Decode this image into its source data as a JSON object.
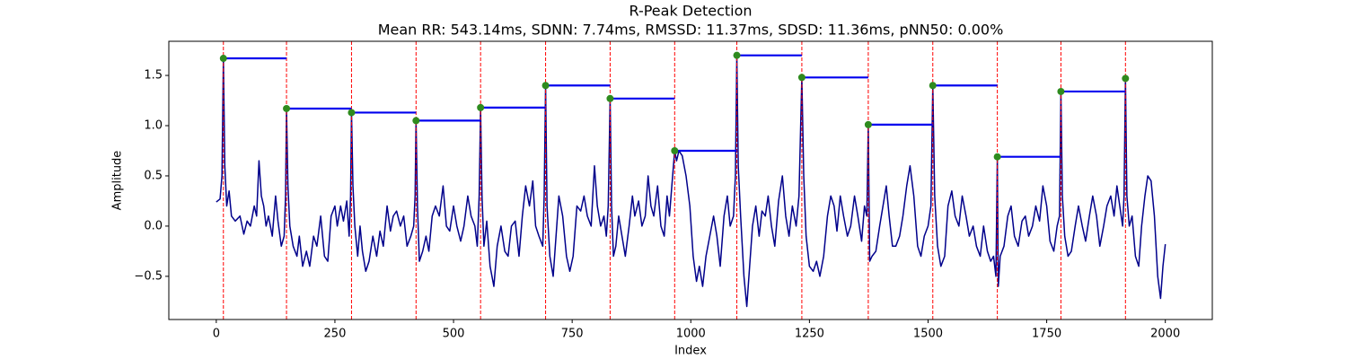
{
  "chart_data": {
    "type": "line",
    "title": "R-Peak Detection",
    "subtitle": "Mean RR: 543.14ms, SDNN: 7.74ms, RMSSD: 11.37ms, SDSD: 11.36ms, pNN50: 0.00%",
    "x_label": "Index",
    "y_label": "Amplitude",
    "xlim": [
      -100,
      2099
    ],
    "ylim": [
      -0.93,
      1.84
    ],
    "xticks": [
      0,
      250,
      500,
      750,
      1000,
      1250,
      1500,
      1750,
      2000
    ],
    "yticks": [
      {
        "value": -0.5,
        "label": "−0.5"
      },
      {
        "value": 0,
        "label": "0.0"
      },
      {
        "value": 0.5,
        "label": "0.5"
      },
      {
        "value": 1,
        "label": "1.0"
      },
      {
        "value": 1.5,
        "label": "1.5"
      }
    ],
    "series": [
      {
        "color": "#00008b",
        "x": [
          0,
          8,
          12,
          15,
          18,
          22,
          27,
          32,
          40,
          50,
          58,
          65,
          72,
          80,
          85,
          90,
          95,
          100,
          105,
          110,
          118,
          125,
          130,
          137,
          143,
          146,
          148,
          151,
          155,
          162,
          170,
          175,
          182,
          190,
          197,
          205,
          212,
          220,
          228,
          235,
          242,
          250,
          255,
          262,
          268,
          275,
          280,
          283,
          285,
          288,
          292,
          298,
          303,
          308,
          315,
          322,
          330,
          338,
          345,
          352,
          360,
          367,
          373,
          380,
          388,
          395,
          402,
          410,
          416,
          419,
          421,
          424,
          428,
          435,
          442,
          448,
          455,
          462,
          470,
          478,
          485,
          492,
          500,
          507,
          515,
          522,
          530,
          537,
          545,
          550,
          554,
          557,
          560,
          564,
          570,
          577,
          585,
          592,
          600,
          608,
          615,
          622,
          630,
          638,
          645,
          652,
          660,
          667,
          673,
          680,
          688,
          691,
          694,
          697,
          703,
          710,
          716,
          722,
          730,
          738,
          745,
          752,
          760,
          768,
          775,
          782,
          790,
          797,
          803,
          810,
          817,
          822,
          826,
          830,
          833,
          837,
          842,
          848,
          855,
          862,
          870,
          877,
          882,
          890,
          897,
          904,
          910,
          916,
          922,
          930,
          937,
          944,
          950,
          955,
          960,
          966,
          970,
          975,
          982,
          990,
          998,
          1005,
          1012,
          1018,
          1025,
          1032,
          1040,
          1048,
          1055,
          1062,
          1070,
          1077,
          1083,
          1090,
          1094,
          1097,
          1100,
          1105,
          1112,
          1118,
          1124,
          1130,
          1137,
          1144,
          1150,
          1157,
          1163,
          1170,
          1177,
          1185,
          1193,
          1200,
          1207,
          1214,
          1222,
          1228,
          1234,
          1238,
          1243,
          1250,
          1258,
          1265,
          1272,
          1280,
          1288,
          1295,
          1302,
          1308,
          1315,
          1322,
          1330,
          1337,
          1345,
          1352,
          1360,
          1366,
          1371,
          1374,
          1377,
          1382,
          1390,
          1398,
          1405,
          1412,
          1418,
          1425,
          1432,
          1440,
          1447,
          1455,
          1462,
          1470,
          1478,
          1485,
          1492,
          1500,
          1506,
          1510,
          1514,
          1520,
          1527,
          1535,
          1542,
          1550,
          1557,
          1565,
          1572,
          1580,
          1587,
          1595,
          1602,
          1610,
          1617,
          1625,
          1632,
          1638,
          1643,
          1646,
          1648,
          1652,
          1660,
          1668,
          1675,
          1682,
          1690,
          1698,
          1705,
          1712,
          1720,
          1727,
          1735,
          1742,
          1750,
          1757,
          1765,
          1772,
          1777,
          1780,
          1783,
          1788,
          1795,
          1802,
          1810,
          1817,
          1825,
          1832,
          1840,
          1847,
          1855,
          1862,
          1870,
          1877,
          1885,
          1892,
          1898,
          1904,
          1910,
          1913,
          1916,
          1919,
          1924,
          1930,
          1937,
          1944,
          1950,
          1957,
          1963,
          1970,
          1977,
          1984,
          1990,
          1995,
          2000
        ],
        "values": [
          0.24,
          0.27,
          0.5,
          1.67,
          0.6,
          0.2,
          0.35,
          0.1,
          0.05,
          0.1,
          -0.08,
          0.05,
          0.0,
          0.2,
          0.1,
          0.65,
          0.3,
          0.2,
          0.0,
          0.1,
          -0.1,
          0.3,
          0.05,
          -0.2,
          -0.1,
          0.3,
          1.17,
          0.4,
          0.0,
          -0.2,
          -0.3,
          -0.1,
          -0.4,
          -0.25,
          -0.4,
          -0.1,
          -0.2,
          0.1,
          -0.3,
          -0.35,
          0.1,
          0.2,
          0.0,
          0.2,
          0.05,
          0.25,
          -0.1,
          0.3,
          1.13,
          0.4,
          0.0,
          -0.3,
          0.0,
          -0.25,
          -0.45,
          -0.35,
          -0.1,
          -0.3,
          -0.05,
          -0.2,
          0.2,
          -0.05,
          0.1,
          0.15,
          0.0,
          0.1,
          -0.2,
          -0.1,
          0.0,
          0.3,
          1.05,
          0.2,
          -0.35,
          -0.25,
          -0.1,
          -0.25,
          0.1,
          0.2,
          0.1,
          0.4,
          0.0,
          -0.05,
          0.2,
          0.0,
          -0.15,
          0.0,
          0.3,
          0.1,
          0.0,
          -0.2,
          0.3,
          1.18,
          0.3,
          -0.2,
          0.05,
          -0.4,
          -0.6,
          -0.2,
          0.0,
          -0.25,
          -0.3,
          0.0,
          0.05,
          -0.3,
          0.1,
          0.4,
          0.2,
          0.45,
          0.0,
          -0.1,
          -0.2,
          0.3,
          1.4,
          0.2,
          -0.3,
          -0.5,
          -0.1,
          0.3,
          0.1,
          -0.3,
          -0.45,
          -0.3,
          0.2,
          0.15,
          0.3,
          0.1,
          0.0,
          0.6,
          0.2,
          0.0,
          0.1,
          -0.1,
          0.2,
          1.27,
          0.2,
          -0.3,
          -0.2,
          0.1,
          -0.1,
          -0.3,
          0.0,
          0.3,
          0.1,
          0.25,
          0.0,
          0.1,
          0.5,
          0.2,
          0.1,
          0.4,
          0.0,
          -0.1,
          0.3,
          0.1,
          0.4,
          0.75,
          0.65,
          0.75,
          0.7,
          0.5,
          0.2,
          -0.3,
          -0.55,
          -0.4,
          -0.6,
          -0.3,
          -0.1,
          0.1,
          -0.1,
          -0.4,
          0.1,
          0.3,
          0.0,
          0.1,
          0.5,
          1.7,
          0.6,
          0.1,
          -0.5,
          -0.8,
          -0.4,
          0.0,
          0.2,
          -0.1,
          0.15,
          0.1,
          0.3,
          0.0,
          -0.2,
          0.25,
          0.5,
          0.1,
          -0.1,
          0.2,
          0.0,
          0.3,
          1.48,
          0.5,
          -0.1,
          -0.4,
          -0.45,
          -0.35,
          -0.5,
          -0.3,
          0.1,
          0.3,
          0.2,
          -0.05,
          0.3,
          0.1,
          -0.1,
          0.0,
          0.3,
          0.1,
          -0.15,
          0.2,
          0.1,
          1.01,
          -0.35,
          -0.3,
          -0.25,
          0.0,
          0.2,
          0.4,
          0.1,
          -0.2,
          -0.2,
          -0.1,
          0.1,
          0.4,
          0.6,
          0.3,
          -0.2,
          -0.3,
          -0.1,
          0.0,
          0.2,
          1.4,
          0.3,
          -0.2,
          -0.4,
          -0.3,
          0.2,
          0.35,
          0.1,
          0.0,
          0.3,
          0.1,
          -0.1,
          0.0,
          -0.2,
          -0.3,
          0.0,
          -0.25,
          -0.35,
          -0.3,
          -0.5,
          0.69,
          -0.6,
          -0.3,
          -0.2,
          0.1,
          0.2,
          -0.1,
          -0.2,
          0.05,
          0.1,
          -0.1,
          0.0,
          0.2,
          0.05,
          0.4,
          0.2,
          -0.15,
          -0.25,
          0.0,
          0.1,
          1.34,
          0.3,
          -0.1,
          -0.3,
          -0.25,
          0.0,
          0.2,
          0.0,
          -0.15,
          0.1,
          0.3,
          0.1,
          -0.2,
          0.0,
          0.2,
          0.3,
          0.1,
          0.4,
          0.2,
          0.0,
          0.3,
          1.47,
          0.3,
          0.0,
          0.1,
          -0.3,
          -0.4,
          0.0,
          0.3,
          0.5,
          0.45,
          0.1,
          -0.5,
          -0.72,
          -0.4,
          -0.18
        ]
      }
    ],
    "peaks": {
      "x": [
        15,
        148,
        285,
        421,
        557,
        694,
        830,
        966,
        1097,
        1234,
        1374,
        1510,
        1646,
        1780,
        1916
      ],
      "values": [
        1.67,
        1.17,
        1.13,
        1.05,
        1.18,
        1.4,
        1.27,
        0.75,
        1.7,
        1.48,
        1.01,
        1.4,
        0.69,
        1.34,
        1.47
      ],
      "marker_color": "#2e8b1e",
      "line_color": "#ff0000",
      "rr_color": "#0000ee"
    }
  }
}
